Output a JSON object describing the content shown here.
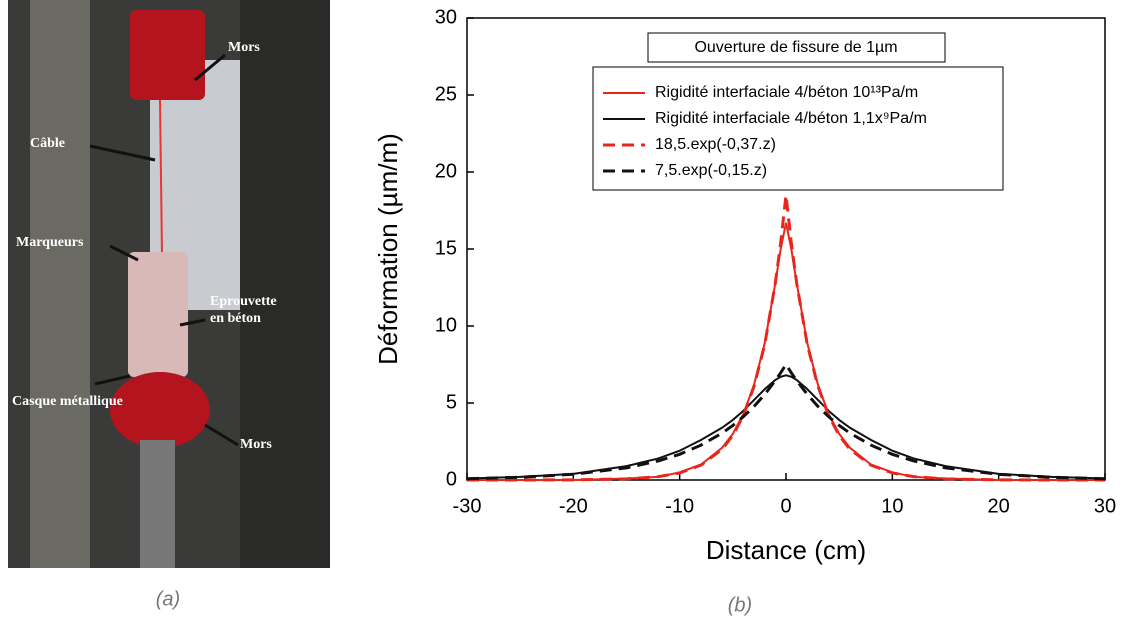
{
  "photo": {
    "labels": [
      "Mors",
      "Câble",
      "Marqueurs",
      "Eprouvette en béton",
      "Casque métallique",
      "Mors"
    ],
    "caption": "(a)"
  },
  "chart_caption": "(b)",
  "chart_data": {
    "type": "line",
    "ylabel": "Déformation (µm/m)",
    "xlabel": "Distance (cm)",
    "legend_title": "Ouverture de fissure de 1µm",
    "xlim": [
      -30,
      30
    ],
    "xticks": [
      -30,
      -20,
      -10,
      0,
      10,
      20,
      30
    ],
    "ylim": [
      0,
      30
    ],
    "yticks": [
      0,
      5,
      10,
      15,
      20,
      25,
      30
    ],
    "x": [
      -30,
      -25,
      -20,
      -15,
      -12,
      -10,
      -8,
      -6,
      -5,
      -4,
      -3,
      -2,
      -1,
      -0.5,
      0,
      0.5,
      1,
      2,
      3,
      4,
      5,
      6,
      8,
      10,
      12,
      15,
      20,
      25,
      30
    ],
    "series": [
      {
        "name": "Rigidité interfaciale 4/béton 10¹³Pa/m",
        "color": "#e8261c",
        "dash": false,
        "values": [
          0,
          0,
          0,
          0.1,
          0.2,
          0.5,
          1.0,
          2.1,
          3.0,
          4.3,
          6.2,
          8.9,
          12.8,
          15.0,
          16.7,
          15.0,
          12.8,
          8.9,
          6.2,
          4.3,
          3.0,
          2.1,
          1.0,
          0.5,
          0.2,
          0.1,
          0,
          0,
          0
        ]
      },
      {
        "name": "Rigidité interfaciale 4/béton 1,1x⁹Pa/m",
        "color": "#111111",
        "dash": false,
        "values": [
          0.1,
          0.2,
          0.4,
          0.9,
          1.4,
          1.9,
          2.6,
          3.4,
          3.9,
          4.5,
          5.2,
          5.9,
          6.5,
          6.7,
          6.8,
          6.7,
          6.5,
          5.9,
          5.2,
          4.5,
          3.9,
          3.4,
          2.6,
          1.9,
          1.4,
          0.9,
          0.4,
          0.2,
          0.1
        ]
      },
      {
        "name": "18,5.exp(-0,37.z)",
        "color": "#e8261c",
        "dash": true,
        "values": [
          0,
          0,
          0.01,
          0.07,
          0.22,
          0.46,
          0.96,
          2.0,
          2.9,
          4.2,
          6.1,
          8.8,
          12.8,
          15.4,
          18.5,
          15.4,
          12.8,
          8.8,
          6.1,
          4.2,
          2.9,
          2.0,
          0.96,
          0.46,
          0.22,
          0.07,
          0.01,
          0,
          0
        ]
      },
      {
        "name": "7,5.exp(-0,15.z)",
        "color": "#111111",
        "dash": true,
        "values": [
          0.08,
          0.18,
          0.37,
          0.79,
          1.24,
          1.67,
          2.26,
          3.05,
          3.54,
          4.12,
          4.78,
          5.56,
          6.46,
          6.96,
          7.5,
          6.96,
          6.46,
          5.56,
          4.78,
          4.12,
          3.54,
          3.05,
          2.26,
          1.67,
          1.24,
          0.79,
          0.37,
          0.18,
          0.08
        ]
      }
    ]
  }
}
